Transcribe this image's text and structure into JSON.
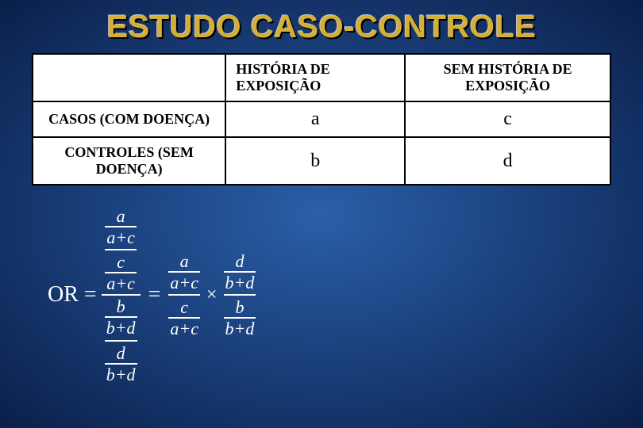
{
  "title": "ESTUDO CASO-CONTROLE",
  "table": {
    "header_blank": "",
    "header_col1": "HISTÓRIA DE EXPOSIÇÃO",
    "header_col2": "SEM HISTÓRIA DE EXPOSIÇÃO",
    "row1_label": "CASOS (COM DOENÇA)",
    "row2_label": "CONTROLES (SEM DOENÇA)",
    "cell_a": "a",
    "cell_b": "b",
    "cell_c": "c",
    "cell_d": "d"
  },
  "formula": {
    "or_label": "OR",
    "a": "a",
    "b": "b",
    "c": "c",
    "d": "d",
    "a_plus_c": "a+c",
    "b_plus_d": "b+d"
  },
  "colors": {
    "title_gold": "#d4af37",
    "bg_center": "#2a5fa8",
    "bg_edge": "#0a1f4a",
    "table_bg": "#ffffff",
    "border": "#000000",
    "formula_text": "#ffffff"
  }
}
